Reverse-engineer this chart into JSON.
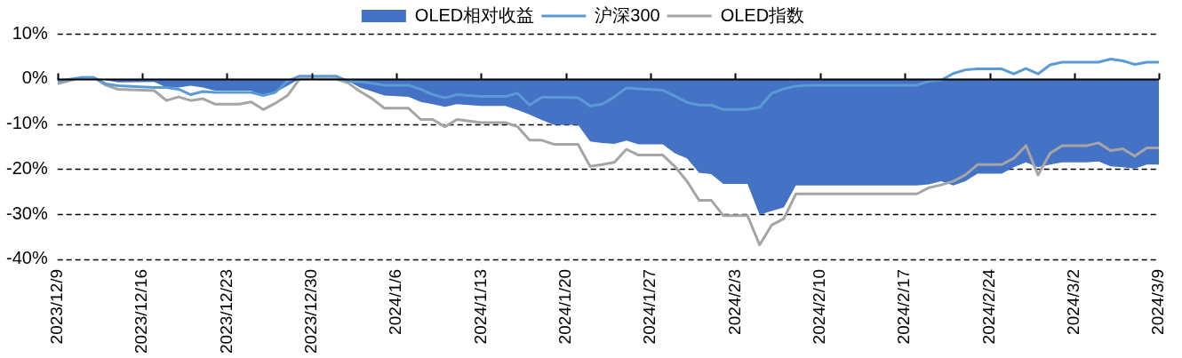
{
  "chart_data": {
    "type": "line",
    "x": [
      "2023-12-09",
      "2023-12-11",
      "2023-12-12",
      "2023-12-13",
      "2023-12-14",
      "2023-12-17",
      "2023-12-18",
      "2023-12-19",
      "2023-12-20",
      "2023-12-21",
      "2023-12-22",
      "2023-12-24",
      "2023-12-25",
      "2023-12-26",
      "2023-12-27",
      "2023-12-28",
      "2023-12-29",
      "2024-01-01",
      "2024-01-02",
      "2024-01-03",
      "2024-01-04",
      "2024-01-05",
      "2024-01-07",
      "2024-01-08",
      "2024-01-09",
      "2024-01-10",
      "2024-01-11",
      "2024-01-13",
      "2024-01-15",
      "2024-01-16",
      "2024-01-17",
      "2024-01-18",
      "2024-01-19",
      "2024-01-21",
      "2024-01-22",
      "2024-01-23",
      "2024-01-24",
      "2024-01-25",
      "2024-01-26",
      "2024-01-28",
      "2024-01-29",
      "2024-01-30",
      "2024-01-31",
      "2024-02-01",
      "2024-02-02",
      "2024-02-04",
      "2024-02-05",
      "2024-02-06",
      "2024-02-07",
      "2024-02-08",
      "2024-02-09",
      "2024-02-18",
      "2024-02-19",
      "2024-02-20",
      "2024-02-21",
      "2024-02-22",
      "2024-02-23",
      "2024-02-25",
      "2024-02-26",
      "2024-02-27",
      "2024-02-28",
      "2024-02-29",
      "2024-03-01",
      "2024-03-03",
      "2024-03-04",
      "2024-03-05",
      "2024-03-06",
      "2024-03-07",
      "2024-03-08",
      "2024-03-09"
    ],
    "series": [
      {
        "name": "OLED相对收益",
        "type": "area",
        "color": "#4472c4",
        "values": [
          -0.5,
          0,
          0,
          -0.3,
          -0.8,
          -0.7,
          -1.9,
          -1.9,
          -1.5,
          -1.9,
          -2.6,
          -2.6,
          -2.6,
          -3.9,
          -3.0,
          -1.5,
          0,
          0,
          -0.5,
          -1.9,
          -2.8,
          -3.7,
          -4.0,
          -5.1,
          -5.6,
          -6.2,
          -5.6,
          -6.0,
          -6.0,
          -6.9,
          -7.9,
          -9.1,
          -10.2,
          -10.2,
          -13.9,
          -14.2,
          -14.4,
          -13.7,
          -14.5,
          -14.5,
          -16.5,
          -17.6,
          -20.8,
          -21.1,
          -23.3,
          -23.3,
          -30.1,
          -29.3,
          -28.5,
          -23.6,
          -23.6,
          -23.6,
          -23.4,
          -22.7,
          -23.6,
          -22.7,
          -21.0,
          -21.0,
          -19.6,
          -18.5,
          -19.6,
          -19.0,
          -18.5,
          -18.5,
          -18.3,
          -19.4,
          -19.6,
          -19.9,
          -19.0,
          -19.0
        ]
      },
      {
        "name": "沪深300",
        "type": "line",
        "color": "#5b9bd5",
        "values": [
          -0.5,
          0.3,
          0.3,
          -1.1,
          -1.5,
          -1.9,
          -1.9,
          -2.3,
          -3.5,
          -2.8,
          -3.0,
          -3.0,
          -3.0,
          -3.7,
          -3.0,
          -0.5,
          0.6,
          0.6,
          -0.5,
          -0.7,
          -1.0,
          -1.4,
          -1.4,
          -2.3,
          -3.5,
          -4.2,
          -3.5,
          -3.9,
          -3.9,
          -3.2,
          -5.8,
          -4.1,
          -4.1,
          -4.2,
          -6.0,
          -5.6,
          -4.0,
          -2.0,
          -2.2,
          -2.5,
          -3.8,
          -5.2,
          -5.8,
          -5.8,
          -6.8,
          -6.8,
          -6.3,
          -3.2,
          -2.2,
          -1.6,
          -1.4,
          -1.4,
          -0.5,
          -0.3,
          1.2,
          2.0,
          2.2,
          2.2,
          1.1,
          2.3,
          1.1,
          3.1,
          3.7,
          3.7,
          3.7,
          4.4,
          4.0,
          3.2,
          3.7,
          3.7
        ]
      },
      {
        "name": "OLED指数",
        "type": "line",
        "color": "#a5a5a5",
        "values": [
          -1.1,
          0.3,
          0.3,
          -1.4,
          -2.3,
          -2.6,
          -4.8,
          -4.0,
          -4.8,
          -4.4,
          -5.6,
          -5.6,
          -5.1,
          -6.8,
          -5.4,
          -3.7,
          0,
          0,
          -0.9,
          -2.8,
          -4.4,
          -6.5,
          -6.5,
          -9.0,
          -9.0,
          -10.6,
          -9.0,
          -9.7,
          -9.7,
          -10.6,
          -13.6,
          -13.6,
          -14.5,
          -14.5,
          -19.4,
          -19.0,
          -18.5,
          -15.6,
          -16.9,
          -16.9,
          -19.4,
          -22.7,
          -26.9,
          -26.9,
          -30.3,
          -30.3,
          -36.8,
          -32.4,
          -31.0,
          -25.5,
          -25.5,
          -25.5,
          -24.1,
          -23.5,
          -22.7,
          -21.3,
          -19.0,
          -19.0,
          -17.6,
          -14.8,
          -21.3,
          -16.5,
          -14.8,
          -14.8,
          -14.2,
          -15.9,
          -15.5,
          -17.1,
          -15.3,
          -15.3
        ]
      }
    ],
    "ylim": [
      -40,
      10
    ],
    "yticks": [
      {
        "value": 10,
        "label": "10%"
      },
      {
        "value": 0,
        "label": "0%"
      },
      {
        "value": -10,
        "label": "-10%"
      },
      {
        "value": -20,
        "label": "-20%"
      },
      {
        "value": -30,
        "label": "-30%"
      },
      {
        "value": -40,
        "label": "-40%"
      }
    ],
    "xlim": [
      "2023-12-09",
      "2024-03-09"
    ],
    "xticks": [
      {
        "value": "2023-12-09",
        "label": "2023/12/9"
      },
      {
        "value": "2023-12-16",
        "label": "2023/12/16"
      },
      {
        "value": "2023-12-23",
        "label": "2023/12/23"
      },
      {
        "value": "2023-12-30",
        "label": "2023/12/30"
      },
      {
        "value": "2024-01-06",
        "label": "2024/1/6"
      },
      {
        "value": "2024-01-13",
        "label": "2024/1/13"
      },
      {
        "value": "2024-01-20",
        "label": "2024/1/20"
      },
      {
        "value": "2024-01-27",
        "label": "2024/1/27"
      },
      {
        "value": "2024-02-03",
        "label": "2024/2/3"
      },
      {
        "value": "2024-02-10",
        "label": "2024/2/10"
      },
      {
        "value": "2024-02-17",
        "label": "2024/2/17"
      },
      {
        "value": "2024-02-24",
        "label": "2024/2/24"
      },
      {
        "value": "2024-03-02",
        "label": "2024/3/2"
      },
      {
        "value": "2024-03-09",
        "label": "2024/3/9"
      }
    ],
    "grid": "y",
    "legend": "top",
    "marker": "none",
    "line_style": "solid"
  }
}
